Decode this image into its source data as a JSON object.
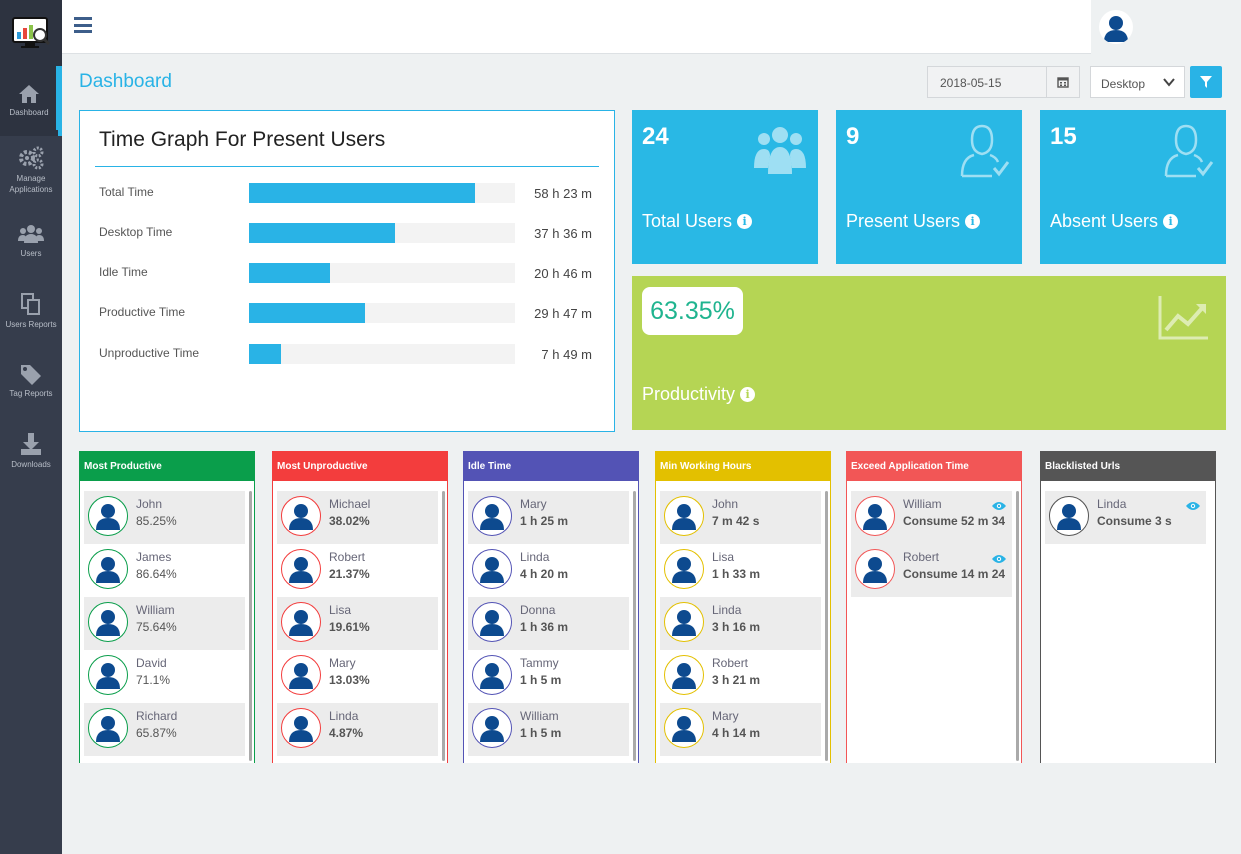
{
  "sidebar": {
    "items": [
      {
        "label": "Dashboard",
        "icon": "home-icon"
      },
      {
        "label": "Manage Applications",
        "icon": "gears-icon"
      },
      {
        "label": "Users",
        "icon": "users-icon"
      },
      {
        "label": "Users Reports",
        "icon": "copy-icon"
      },
      {
        "label": "Tag Reports",
        "icon": "tags-icon"
      },
      {
        "label": "Downloads",
        "icon": "download-icon"
      }
    ]
  },
  "header": {
    "title": "Dashboard",
    "date": "2018-05-15",
    "device_select": "Desktop"
  },
  "time_graph": {
    "title": "Time Graph For Present Users",
    "rows": [
      {
        "label": "Total Time",
        "value": "58 h 23 m",
        "fraction": 0.85
      },
      {
        "label": "Desktop Time",
        "value": "37 h 36 m",
        "fraction": 0.55
      },
      {
        "label": "Idle Time",
        "value": "20 h 46 m",
        "fraction": 0.305
      },
      {
        "label": "Productive Time",
        "value": "29 h 47 m",
        "fraction": 0.435
      },
      {
        "label": "Unproductive Time",
        "value": "7 h 49 m",
        "fraction": 0.12
      }
    ]
  },
  "stats": {
    "total_users": {
      "value": "24",
      "label": "Total Users"
    },
    "present_users": {
      "value": "9",
      "label": "Present Users"
    },
    "absent_users": {
      "value": "15",
      "label": "Absent Users"
    },
    "productivity": {
      "value": "63.35%",
      "label": "Productivity"
    }
  },
  "lists": [
    {
      "title": "Most Productive",
      "color": "#0a9e4b",
      "items": [
        {
          "name": "John",
          "value": "85.25%"
        },
        {
          "name": "James",
          "value": "86.64%"
        },
        {
          "name": "William",
          "value": "75.64%"
        },
        {
          "name": "David",
          "value": "71.1%"
        },
        {
          "name": "Richard",
          "value": "65.87%"
        }
      ]
    },
    {
      "title": "Most Unproductive",
      "color": "#f33d3d",
      "items": [
        {
          "name": "Michael",
          "value": "38.02%"
        },
        {
          "name": "Robert",
          "value": "21.37%"
        },
        {
          "name": "Lisa",
          "value": "19.61%"
        },
        {
          "name": "Mary",
          "value": "13.03%"
        },
        {
          "name": "Linda",
          "value": "4.87%"
        }
      ]
    },
    {
      "title": "Idle Time",
      "color": "#5353b5",
      "items": [
        {
          "name": "Mary",
          "value": "1 h 25 m"
        },
        {
          "name": "Linda",
          "value": "4 h 20 m"
        },
        {
          "name": "Donna",
          "value": "1 h 36 m"
        },
        {
          "name": "Tammy",
          "value": "1 h 5 m"
        },
        {
          "name": "William",
          "value": "1 h 5 m"
        }
      ]
    },
    {
      "title": "Min Working Hours",
      "color": "#e3c000",
      "items": [
        {
          "name": "John",
          "value": "7 m 42 s"
        },
        {
          "name": "Lisa",
          "value": "1 h 33 m"
        },
        {
          "name": "Linda",
          "value": "3 h 16 m"
        },
        {
          "name": "Robert",
          "value": "3 h 21 m"
        },
        {
          "name": "Mary",
          "value": "4 h 14 m"
        }
      ]
    },
    {
      "title": "Exceed Application Time",
      "color": "#f25656",
      "items": [
        {
          "name": "William",
          "value": "Consume 52 m 34"
        },
        {
          "name": "Robert",
          "value": "Consume 14 m 24"
        }
      ]
    },
    {
      "title": "Blacklisted Urls",
      "color": "#555555",
      "items": [
        {
          "name": "Linda",
          "value": "Consume 3 s"
        }
      ]
    }
  ],
  "colors": {
    "accent": "#29b3e6",
    "sidebar": "#363d4c",
    "productivity_tile": "#b5d554",
    "productivity_text": "#1fb48f"
  }
}
